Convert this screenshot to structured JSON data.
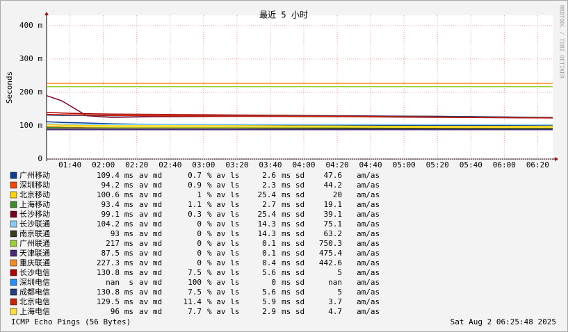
{
  "chart_data": {
    "type": "line",
    "title": "最近 5 小时",
    "y_label": "Seconds",
    "watermark": "RRDTOOL / TOBI OETIKER",
    "footer_left": "ICMP Echo Pings (56 Bytes)",
    "footer_right": "Sat Aug  2 06:25:48 2025",
    "x": [
      86,
      95,
      110,
      125,
      150,
      200,
      260,
      320,
      389
    ],
    "xlim": [
      86,
      389
    ],
    "xticks": [
      {
        "value": 100,
        "label": "01:40"
      },
      {
        "value": 120,
        "label": "02:00"
      },
      {
        "value": 140,
        "label": "02:20"
      },
      {
        "value": 160,
        "label": "02:40"
      },
      {
        "value": 180,
        "label": "03:00"
      },
      {
        "value": 200,
        "label": "03:20"
      },
      {
        "value": 220,
        "label": "03:40"
      },
      {
        "value": 240,
        "label": "04:00"
      },
      {
        "value": 260,
        "label": "04:20"
      },
      {
        "value": 280,
        "label": "04:40"
      },
      {
        "value": 300,
        "label": "05:00"
      },
      {
        "value": 320,
        "label": "05:20"
      },
      {
        "value": 340,
        "label": "05:40"
      },
      {
        "value": 360,
        "label": "06:00"
      },
      {
        "value": 380,
        "label": "06:20"
      }
    ],
    "ylim": [
      0,
      431
    ],
    "yticks": [
      0,
      {
        "value": 100,
        "label": "100 m"
      },
      {
        "value": 200,
        "label": "200 m"
      },
      {
        "value": 300,
        "label": "300 m"
      },
      {
        "value": 400,
        "label": "400 m"
      }
    ],
    "grid": true,
    "legend_labels": {
      "md": "av md",
      "loss": "% av ls",
      "sd": "ms sd",
      "ratio": "am/as"
    },
    "series": [
      {
        "name": "广州移动",
        "color": "#0b3d91",
        "median": 109.4,
        "unit": "ms",
        "loss": 0.7,
        "sd": 2.6,
        "am_as": 47.6,
        "values": [
          112,
          110,
          108,
          106,
          104,
          103,
          102,
          101,
          100
        ]
      },
      {
        "name": "深圳移动",
        "color": "#ff4500",
        "median": 94.2,
        "unit": "ms",
        "loss": 0.9,
        "sd": 2.3,
        "am_as": 44.2,
        "values": [
          96,
          95,
          94,
          94,
          94,
          94,
          94,
          94,
          93
        ]
      },
      {
        "name": "北京移动",
        "color": "#ffd700",
        "median": 100.6,
        "unit": "ms",
        "loss": 1.0,
        "sd": 25.4,
        "am_as": 20.0,
        "values": [
          104,
          102,
          101,
          100,
          100,
          100,
          99,
          98,
          98
        ]
      },
      {
        "name": "上海移动",
        "color": "#3a8f2a",
        "median": 93.4,
        "unit": "ms",
        "loss": 1.1,
        "sd": 2.7,
        "am_as": 19.1,
        "values": [
          95,
          94,
          93,
          93,
          93,
          93,
          93,
          93,
          92
        ]
      },
      {
        "name": "长沙移动",
        "color": "#7a0020",
        "median": 99.1,
        "unit": "ms",
        "loss": 0.3,
        "sd": 25.4,
        "am_as": 39.1,
        "values": [
          190,
          175,
          130,
          125,
          127,
          128,
          127,
          125,
          123
        ]
      },
      {
        "name": "长沙联通",
        "color": "#87cefa",
        "median": 104.2,
        "unit": "ms",
        "loss": 0.0,
        "sd": 14.3,
        "am_as": 75.1,
        "values": [
          106,
          105,
          104,
          104,
          104,
          104,
          104,
          104,
          104
        ]
      },
      {
        "name": "南京联通",
        "color": "#3b3b1f",
        "median": 93.0,
        "unit": "ms",
        "loss": 0.0,
        "sd": 14.3,
        "am_as": 63.2,
        "values": [
          92,
          92,
          92,
          92,
          92,
          92,
          91,
          91,
          90
        ]
      },
      {
        "name": "广州联通",
        "color": "#9acd32",
        "median": 217.0,
        "unit": "ms",
        "loss": 0.0,
        "sd": 0.1,
        "am_as": 750.3,
        "values": [
          217,
          217,
          217,
          217,
          217,
          217,
          217,
          217,
          217
        ]
      },
      {
        "name": "天津联通",
        "color": "#4b2a7a",
        "median": 87.5,
        "unit": "ms",
        "loss": 0.0,
        "sd": 0.1,
        "am_as": 475.4,
        "values": [
          88,
          88,
          88,
          88,
          88,
          88,
          88,
          88,
          88
        ]
      },
      {
        "name": "重庆联通",
        "color": "#ff8c1a",
        "median": 227.3,
        "unit": "ms",
        "loss": 0.0,
        "sd": 0.4,
        "am_as": 442.6,
        "values": [
          227,
          227,
          227,
          227,
          227,
          227,
          227,
          227,
          227
        ]
      },
      {
        "name": "长沙电信",
        "color": "#b00000",
        "median": 130.8,
        "unit": "ms",
        "loss": 7.5,
        "sd": 5.6,
        "am_as": 5.0,
        "values": [
          140,
          138,
          136,
          135,
          134,
          132,
          130,
          128,
          124
        ]
      },
      {
        "name": "深圳电信",
        "color": "#1e90ff",
        "median": "nan",
        "unit": "s",
        "loss": 100.0,
        "sd": 0.0,
        "am_as": "nan",
        "values": [
          null,
          null,
          null,
          null,
          null,
          null,
          null,
          null,
          null
        ]
      },
      {
        "name": "成都电信",
        "color": "#1f3f7f",
        "median": 130.8,
        "unit": "ms",
        "loss": 7.5,
        "sd": 5.6,
        "am_as": 5.0,
        "values": [
          132,
          131,
          131,
          130,
          130,
          130,
          129,
          128,
          125
        ]
      },
      {
        "name": "北京电信",
        "color": "#cc2200",
        "median": 129.5,
        "unit": "ms",
        "loss": 11.4,
        "sd": 5.9,
        "am_as": 3.7,
        "values": [
          134,
          133,
          132,
          131,
          130,
          129,
          128,
          126,
          123
        ]
      },
      {
        "name": "上海电信",
        "color": "#ffdd33",
        "median": 96.0,
        "unit": "ms",
        "loss": 7.7,
        "sd": 2.9,
        "am_as": 4.7,
        "values": [
          100,
          98,
          97,
          96,
          96,
          96,
          96,
          95,
          95
        ]
      }
    ]
  }
}
